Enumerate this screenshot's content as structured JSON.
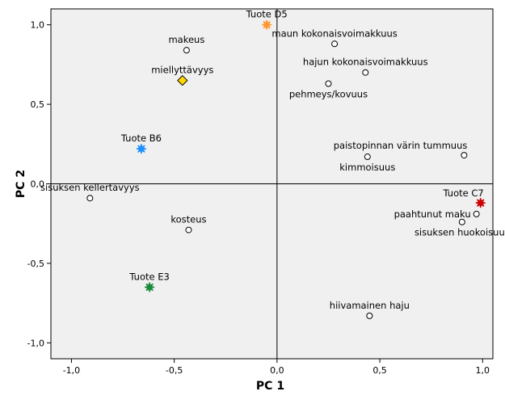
{
  "chart_data": {
    "type": "scatter",
    "xlabel": "PC 1",
    "ylabel": "PC 2",
    "xlim": [
      -1.1,
      1.05
    ],
    "ylim": [
      -1.1,
      1.1
    ],
    "x_ticks": [
      -1.0,
      -0.5,
      0.0,
      0.5,
      1.0
    ],
    "x_tick_labels": [
      "-1,0",
      "-0,5",
      "0,0",
      "0,5",
      "1,0"
    ],
    "y_ticks": [
      -1.0,
      -0.5,
      0.0,
      0.5,
      1.0
    ],
    "y_tick_labels": [
      "-1,0",
      "-0,5",
      "0,0",
      "0,5",
      "1,0"
    ],
    "grid": false,
    "reference_lines": {
      "x": 0,
      "y": 0
    },
    "colors": {
      "plot_background": "#f0f0f0",
      "attribute_marker": "#ffffff",
      "liking_marker": "#ffd700",
      "tuote_d5": "#ff9933",
      "tuote_b6": "#1e90ff",
      "tuote_c7": "#cc0000",
      "tuote_e3": "#1a8a3a"
    },
    "points": [
      {
        "label": "Tuote D5",
        "x": -0.05,
        "y": 1.0,
        "marker": "star",
        "color": "#ff9933",
        "label_pos": "above"
      },
      {
        "label": "maun kokonaisvoimakkuus",
        "x": 0.28,
        "y": 0.88,
        "marker": "circle",
        "label_pos": "above"
      },
      {
        "label": "makeus",
        "x": -0.44,
        "y": 0.84,
        "marker": "circle",
        "label_pos": "above"
      },
      {
        "label": "hajun kokonaisvoimakkuus",
        "x": 0.43,
        "y": 0.7,
        "marker": "circle",
        "label_pos": "above"
      },
      {
        "label": "miellyttävyys",
        "x": -0.46,
        "y": 0.65,
        "marker": "diamond",
        "color": "#ffd700",
        "label_pos": "above"
      },
      {
        "label": "pehmeys/kovuus",
        "x": 0.25,
        "y": 0.63,
        "marker": "circle",
        "label_pos": "below"
      },
      {
        "label": "Tuote B6",
        "x": -0.66,
        "y": 0.22,
        "marker": "star",
        "color": "#1e90ff",
        "label_pos": "above"
      },
      {
        "label": "paistopinnan värin tummuus",
        "x": 0.91,
        "y": 0.18,
        "marker": "circle",
        "label_pos": "above-left"
      },
      {
        "label": "kimmoisuus",
        "x": 0.44,
        "y": 0.17,
        "marker": "circle",
        "label_pos": "below"
      },
      {
        "label": "sisuksen kellertävyys",
        "x": -0.91,
        "y": -0.09,
        "marker": "circle",
        "label_pos": "above"
      },
      {
        "label": "Tuote C7",
        "x": 0.99,
        "y": -0.12,
        "marker": "star",
        "color": "#cc0000",
        "label_pos": "above-left"
      },
      {
        "label": "paahtunut maku",
        "x": 0.97,
        "y": -0.19,
        "marker": "circle",
        "label_pos": "left"
      },
      {
        "label": "sisuksen huokoisuus",
        "x": 0.9,
        "y": -0.24,
        "marker": "circle",
        "label_pos": "below"
      },
      {
        "label": "kosteus",
        "x": -0.43,
        "y": -0.29,
        "marker": "circle",
        "label_pos": "above"
      },
      {
        "label": "Tuote E3",
        "x": -0.62,
        "y": -0.65,
        "marker": "star",
        "color": "#1a8a3a",
        "label_pos": "above"
      },
      {
        "label": "hiivamainen haju",
        "x": 0.45,
        "y": -0.83,
        "marker": "circle",
        "label_pos": "above"
      }
    ]
  }
}
